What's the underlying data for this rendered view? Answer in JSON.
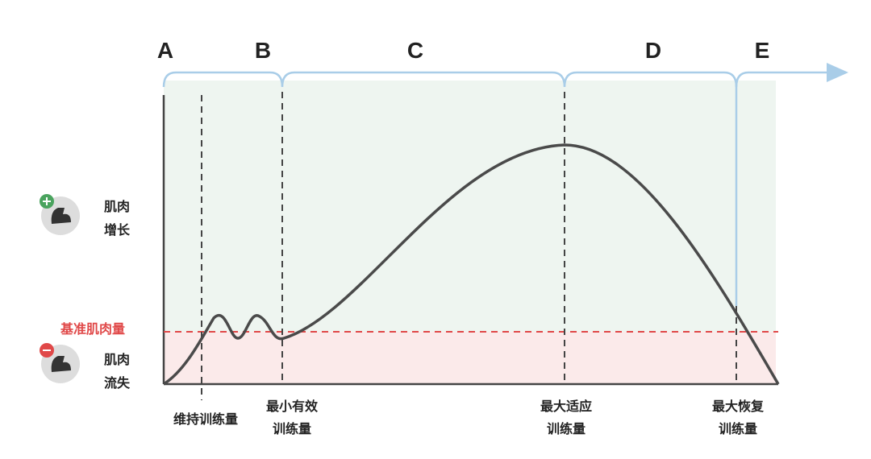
{
  "segments": [
    "A",
    "B",
    "C",
    "D",
    "E"
  ],
  "zones": [
    {
      "lines": [
        "肌肉",
        "增长"
      ]
    },
    {
      "lines": [
        "肌肉",
        "流失"
      ]
    }
  ],
  "baseline_label": "基准肌肉量",
  "markers": [
    {
      "lines": [
        "维持训练量"
      ]
    },
    {
      "lines": [
        "最小有效",
        "训练量"
      ]
    },
    {
      "lines": [
        "最大适应",
        "训练量"
      ]
    },
    {
      "lines": [
        "最大恢复",
        "训练量"
      ]
    }
  ]
}
